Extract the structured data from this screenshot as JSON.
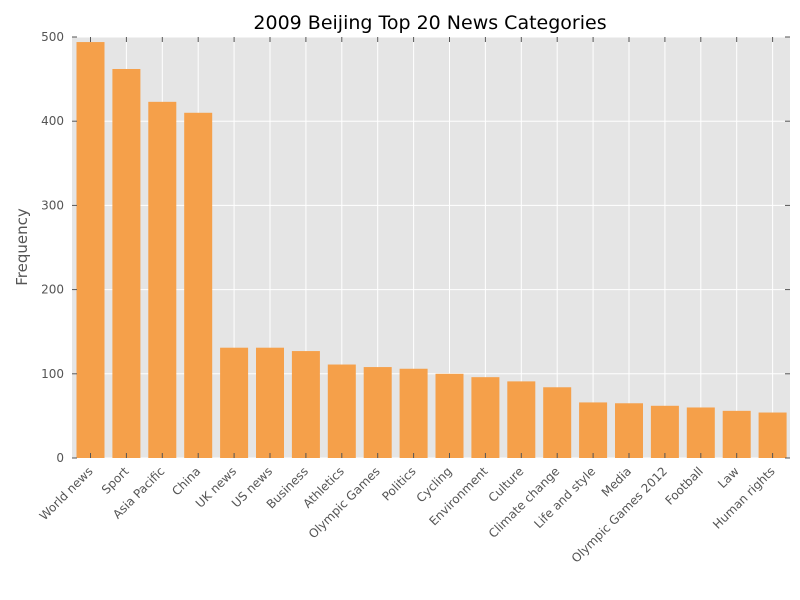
{
  "chart_data": {
    "type": "bar",
    "title": "2009 Beijing Top 20 News Categories",
    "xlabel": "",
    "ylabel": "Frequency",
    "ylim": [
      0,
      500
    ],
    "yticks": [
      0,
      100,
      200,
      300,
      400,
      500
    ],
    "grid": true,
    "legend": "none",
    "colors": {
      "bar": "#f5a04a",
      "background": "#e5e5e5",
      "grid": "#ffffff"
    },
    "categories": [
      "World news",
      "Sport",
      "Asia Pacific",
      "China",
      "UK news",
      "US news",
      "Business",
      "Athletics",
      "Olympic Games",
      "Politics",
      "Cycling",
      "Environment",
      "Culture",
      "Climate change",
      "Life and style",
      "Media",
      "Olympic Games 2012",
      "Football",
      "Law",
      "Human rights"
    ],
    "values": [
      494,
      462,
      423,
      410,
      131,
      131,
      127,
      111,
      108,
      106,
      100,
      96,
      91,
      84,
      66,
      65,
      62,
      60,
      56,
      54
    ]
  }
}
